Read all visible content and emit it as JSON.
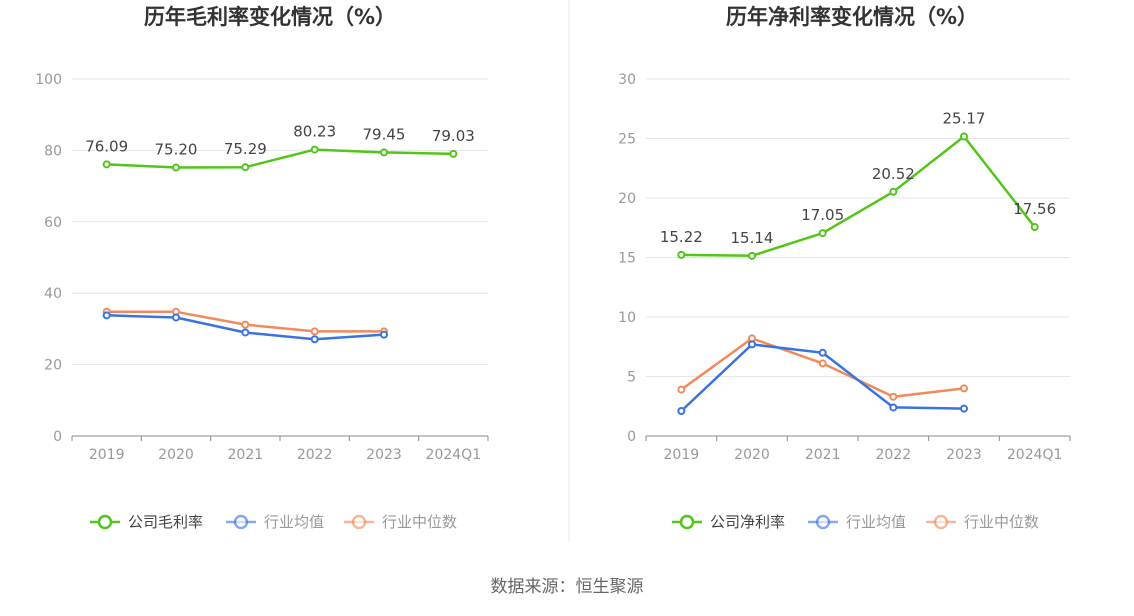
{
  "source_label": "数据来源：恒生聚源",
  "chart_data": [
    {
      "type": "line",
      "title": "历年毛利率变化情况（%）",
      "categories": [
        "2019",
        "2020",
        "2021",
        "2022",
        "2023",
        "2024Q1"
      ],
      "ylim": [
        0,
        100
      ],
      "yticks": [
        0,
        20,
        40,
        60,
        80,
        100
      ],
      "grid": true,
      "legend_position": "bottom",
      "series": [
        {
          "name": "公司毛利率",
          "color": "#52c41a",
          "labels": true,
          "values": [
            76.09,
            75.2,
            75.29,
            80.23,
            79.45,
            79.03
          ],
          "label_text": [
            "76.09",
            "75.20",
            "75.29",
            "80.23",
            "79.45",
            "79.03"
          ]
        },
        {
          "name": "行业均值",
          "color": "#3a73e0",
          "labels": false,
          "values": [
            33.8,
            33.2,
            29.0,
            27.1,
            28.4,
            null
          ]
        },
        {
          "name": "行业中位数",
          "color": "#f08a5d",
          "labels": false,
          "values": [
            34.8,
            34.8,
            31.2,
            29.3,
            29.3,
            null
          ]
        }
      ]
    },
    {
      "type": "line",
      "title": "历年净利率变化情况（%）",
      "categories": [
        "2019",
        "2020",
        "2021",
        "2022",
        "2023",
        "2024Q1"
      ],
      "ylim": [
        0,
        30
      ],
      "yticks": [
        0,
        5,
        10,
        15,
        20,
        25,
        30
      ],
      "grid": true,
      "legend_position": "bottom",
      "series": [
        {
          "name": "公司净利率",
          "color": "#52c41a",
          "labels": true,
          "values": [
            15.22,
            15.14,
            17.05,
            20.52,
            25.17,
            17.56
          ],
          "label_text": [
            "15.22",
            "15.14",
            "17.05",
            "20.52",
            "25.17",
            "17.56"
          ]
        },
        {
          "name": "行业均值",
          "color": "#3a73e0",
          "labels": false,
          "values": [
            2.1,
            7.7,
            7.0,
            2.4,
            2.3,
            null
          ]
        },
        {
          "name": "行业中位数",
          "color": "#f08a5d",
          "labels": false,
          "values": [
            3.9,
            8.2,
            6.1,
            3.3,
            4.0,
            null
          ]
        }
      ]
    }
  ]
}
